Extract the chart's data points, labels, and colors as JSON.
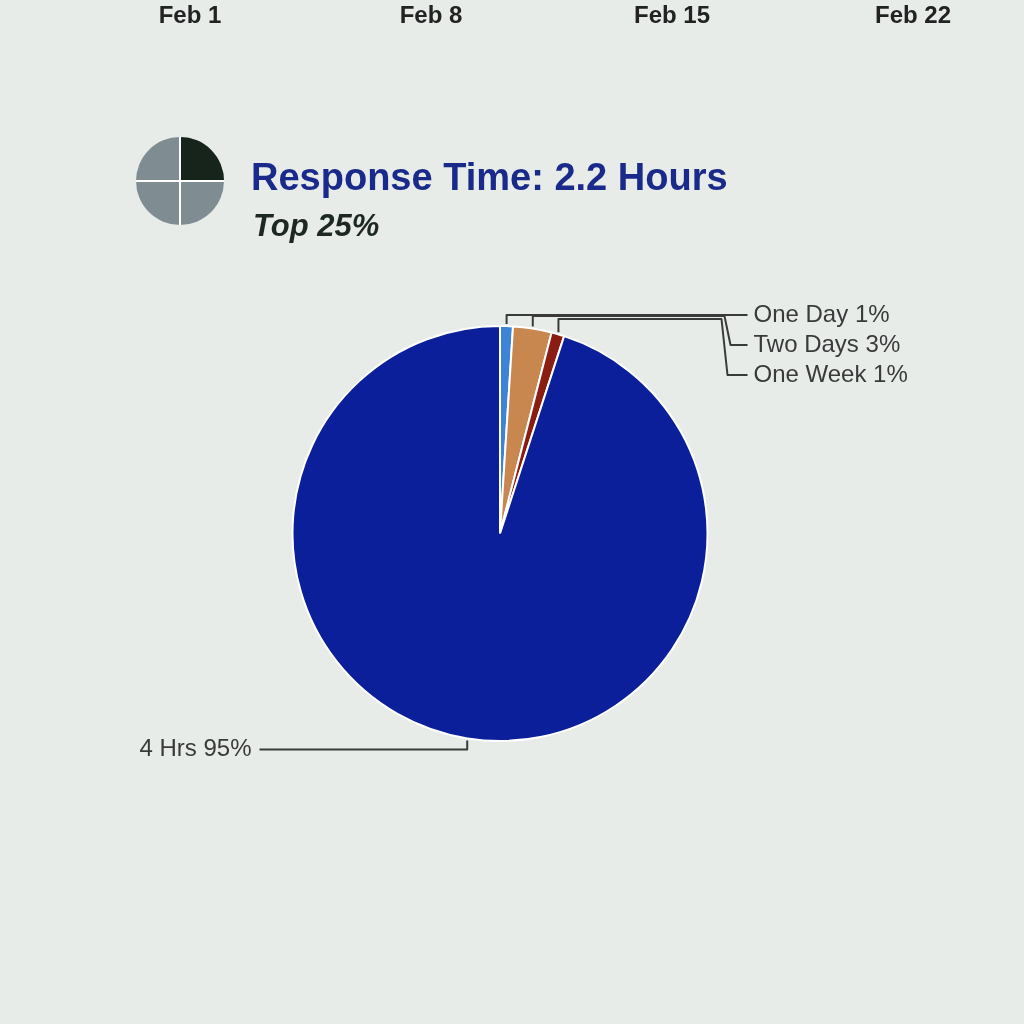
{
  "chart_data": {
    "type": "pie",
    "title": "Response Time: 2.2 Hours",
    "subtitle": "Top 25%",
    "categories": [
      "One Day",
      "Two Days",
      "One Week",
      "4 Hrs"
    ],
    "values": [
      1,
      3,
      1,
      95
    ],
    "value_labels": [
      "1%",
      "3%",
      "1%",
      "95%"
    ],
    "colors": [
      "#3d84d6",
      "#c8874f",
      "#8a1c12",
      "#0b1f9b"
    ],
    "annotations": [
      "Feb 1",
      "Feb 8",
      "Feb 15",
      "Feb 22"
    ]
  }
}
